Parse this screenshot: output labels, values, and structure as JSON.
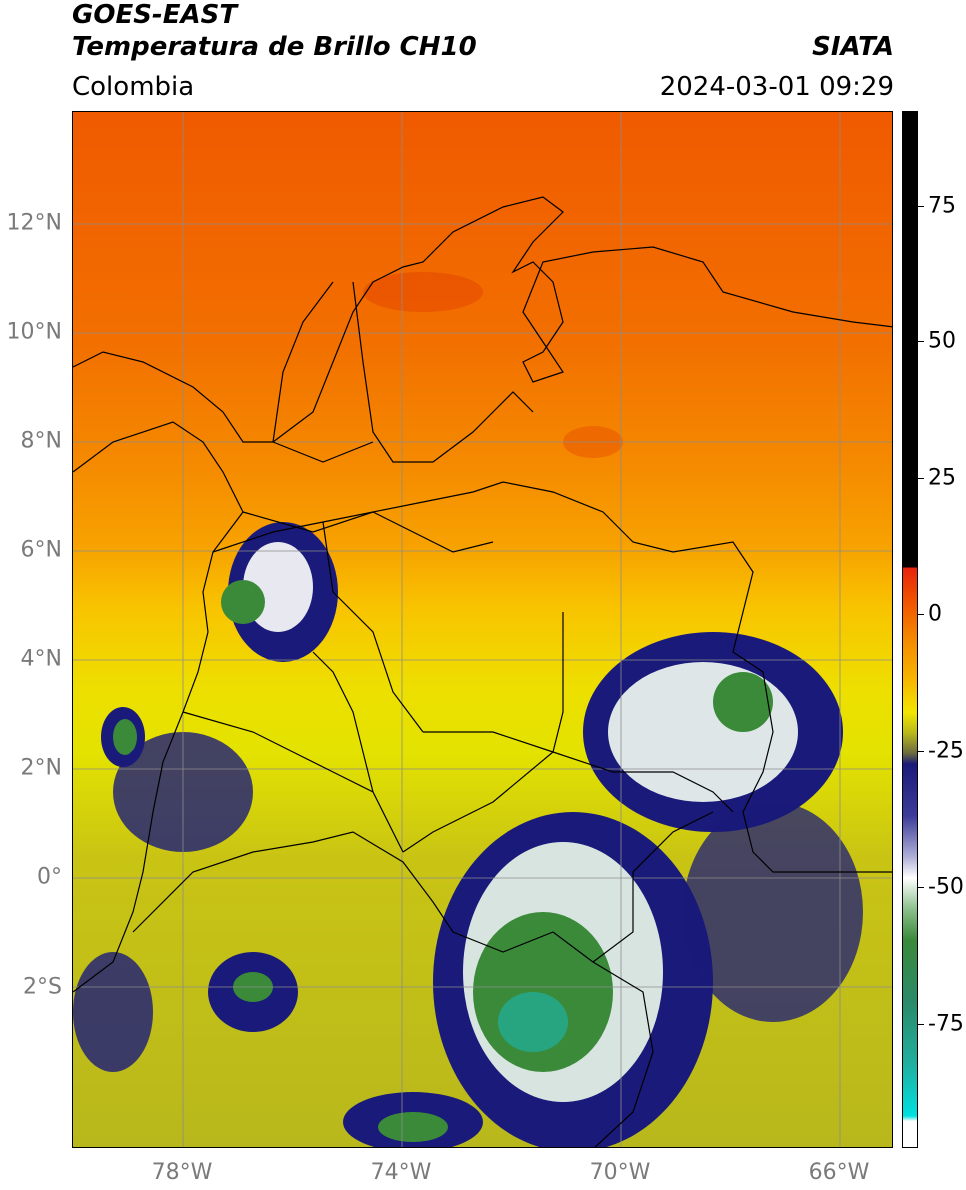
{
  "header": {
    "title_line1": "GOES-EAST",
    "title_line2": "Temperatura de Brillo CH10",
    "region": "Colombia",
    "source": "SIATA",
    "datetime": "2024-03-01 09:29"
  },
  "map": {
    "lat_labels": [
      "12°N",
      "10°N",
      "8°N",
      "6°N",
      "4°N",
      "2°N",
      "0°",
      "2°S"
    ],
    "lon_labels": [
      "78°W",
      "74°W",
      "70°W",
      "66°W"
    ],
    "background": "#ffffff",
    "border_color": "#000000",
    "grid_color": "#8c8c8c"
  },
  "colorbar": {
    "tick_labels": [
      "75",
      "50",
      "25",
      "0",
      "-25",
      "-50",
      "-75"
    ],
    "colors": {
      "black": "#000000",
      "red": "#e8220c",
      "orange": "#f58a00",
      "yellow": "#f2e600",
      "olive": "#b8b81c",
      "navy": "#1a1a7a",
      "white": "#ffffff",
      "green": "#3a8a3a",
      "teal": "#20b0a0",
      "cyan": "#00e0e0"
    }
  }
}
